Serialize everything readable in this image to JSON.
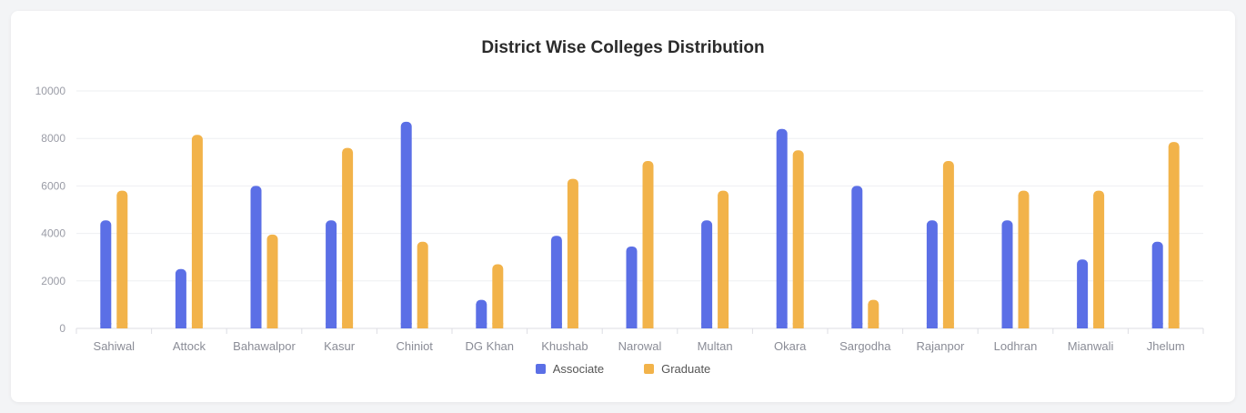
{
  "chart_data": {
    "type": "bar",
    "title": "District Wise Colleges Distribution",
    "xlabel": "",
    "ylabel": "",
    "ylim": [
      0,
      10000
    ],
    "yticks": [
      0,
      2000,
      4000,
      6000,
      8000,
      10000
    ],
    "grid": true,
    "legend_position": "bottom-center",
    "categories": [
      "Sahiwal",
      "Attock",
      "Bahawalpor",
      "Kasur",
      "Chiniot",
      "DG Khan",
      "Khushab",
      "Narowal",
      "Multan",
      "Okara",
      "Sargodha",
      "Rajanpor",
      "Lodhran",
      "Mianwali",
      "Jhelum"
    ],
    "series": [
      {
        "name": "Associate",
        "color": "#5b6fe6",
        "values": [
          4550,
          2500,
          6000,
          4550,
          8700,
          1200,
          3900,
          3450,
          4550,
          8400,
          6000,
          4550,
          4550,
          2900,
          3650
        ]
      },
      {
        "name": "Graduate",
        "color": "#f2b34a",
        "values": [
          5800,
          8150,
          3950,
          7600,
          3650,
          2700,
          6300,
          7050,
          5800,
          7500,
          1200,
          7050,
          5800,
          5800,
          7850
        ]
      }
    ]
  }
}
